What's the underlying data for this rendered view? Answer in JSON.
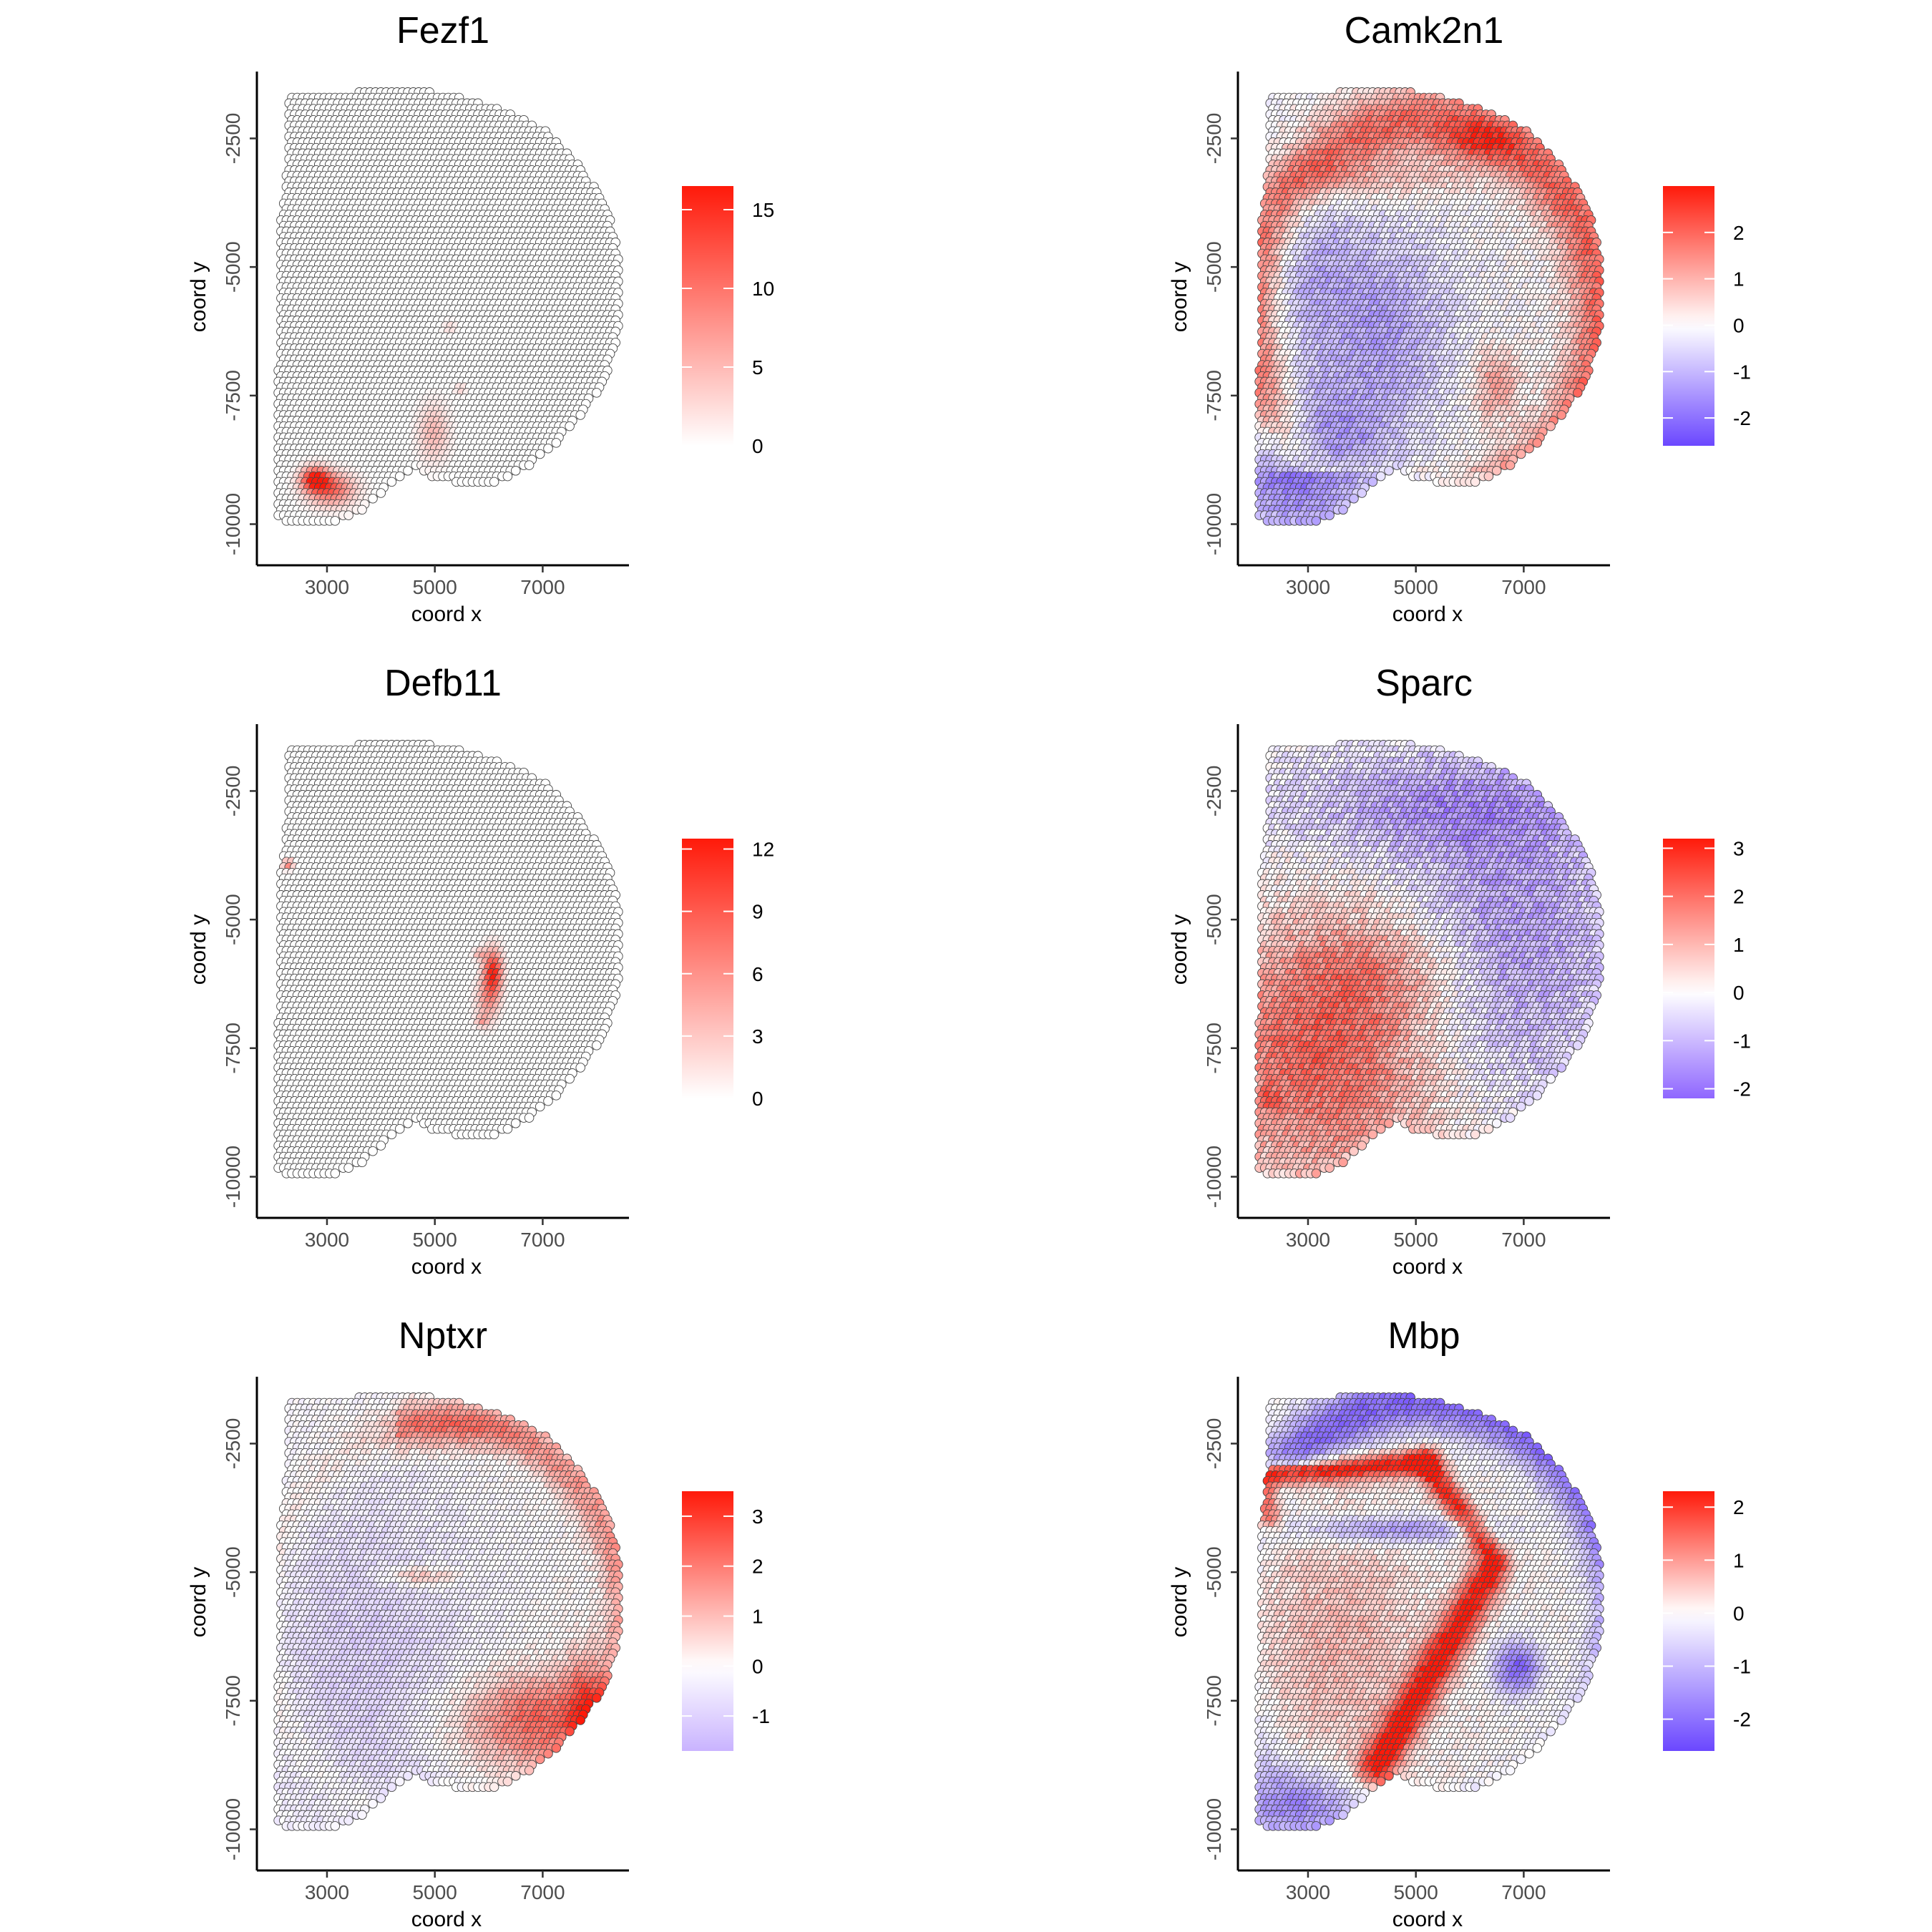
{
  "chart_data": [
    {
      "type": "scatter",
      "title": "Fezf1",
      "xlabel": "coord x",
      "ylabel": "coord y",
      "x_ticks": [
        3000,
        5000,
        7000
      ],
      "y_ticks": [
        -2500,
        -5000,
        -7500,
        -10000
      ],
      "xlim": [
        1700,
        8600
      ],
      "ylim": [
        -10800,
        -1200
      ],
      "color_scale": {
        "low": "#ffffff",
        "mid": "#ffffff",
        "high": "#ff1a0a",
        "min": 0,
        "max": 16.5,
        "ticks": [
          0,
          5,
          10,
          15
        ]
      },
      "hotspots": [
        {
          "x": 3000,
          "y": -9300,
          "value": 11
        },
        {
          "x": 2800,
          "y": -9150,
          "value": 16
        },
        {
          "x": 5000,
          "y": -8200,
          "value": 5
        }
      ]
    },
    {
      "type": "scatter",
      "title": "Camk2n1",
      "xlabel": "coord x",
      "ylabel": "coord y",
      "x_ticks": [
        3000,
        5000,
        7000
      ],
      "y_ticks": [
        -2500,
        -5000,
        -7500,
        -10000
      ],
      "xlim": [
        1700,
        8600
      ],
      "ylim": [
        -10800,
        -1200
      ],
      "color_scale": {
        "low": "#6b47ff",
        "mid": "#ffffff",
        "high": "#ff1a0a",
        "min": -2.6,
        "max": 3.0,
        "ticks": [
          -2,
          -1,
          0,
          1,
          2
        ]
      },
      "hotspots": [
        {
          "x": 6300,
          "y": -2600,
          "value": 2.8
        }
      ]
    },
    {
      "type": "scatter",
      "title": "Defb11",
      "xlabel": "coord x",
      "ylabel": "coord y",
      "x_ticks": [
        3000,
        5000,
        7000
      ],
      "y_ticks": [
        -2500,
        -5000,
        -7500,
        -10000
      ],
      "xlim": [
        1700,
        8600
      ],
      "ylim": [
        -10800,
        -1200
      ],
      "color_scale": {
        "low": "#ffffff",
        "mid": "#ffffff",
        "high": "#ff1a0a",
        "min": 0,
        "max": 12.5,
        "ticks": [
          0,
          3,
          6,
          9,
          12
        ]
      },
      "hotspots": [
        {
          "x": 6100,
          "y": -6000,
          "value": 12
        },
        {
          "x": 2300,
          "y": -3900,
          "value": 8
        }
      ]
    },
    {
      "type": "scatter",
      "title": "Sparc",
      "xlabel": "coord x",
      "ylabel": "coord y",
      "x_ticks": [
        3000,
        5000,
        7000
      ],
      "y_ticks": [
        -2500,
        -5000,
        -7500,
        -10000
      ],
      "xlim": [
        1700,
        8600
      ],
      "ylim": [
        -10800,
        -1200
      ],
      "color_scale": {
        "low": "#8f66ff",
        "mid": "#ffffff",
        "high": "#ff1a0a",
        "min": -2.2,
        "max": 3.2,
        "ticks": [
          -2,
          -1,
          0,
          1,
          2,
          3
        ]
      },
      "hotspots": [
        {
          "x": 2300,
          "y": -8500,
          "value": 3.0
        }
      ]
    },
    {
      "type": "scatter",
      "title": "Nptxr",
      "xlabel": "coord x",
      "ylabel": "coord y",
      "x_ticks": [
        3000,
        5000,
        7000
      ],
      "y_ticks": [
        -2500,
        -5000,
        -7500,
        -10000
      ],
      "xlim": [
        1700,
        8600
      ],
      "ylim": [
        -10800,
        -1200
      ],
      "color_scale": {
        "low": "#c9b3ff",
        "mid": "#ffffff",
        "high": "#ff1a0a",
        "min": -1.7,
        "max": 3.5,
        "ticks": [
          -1,
          0,
          1,
          2,
          3
        ]
      },
      "hotspots": [
        {
          "x": 7700,
          "y": -7800,
          "value": 3.4
        }
      ]
    },
    {
      "type": "scatter",
      "title": "Mbp",
      "xlabel": "coord x",
      "ylabel": "coord y",
      "x_ticks": [
        3000,
        5000,
        7000
      ],
      "y_ticks": [
        -2500,
        -5000,
        -7500,
        -10000
      ],
      "xlim": [
        1700,
        8600
      ],
      "ylim": [
        -10800,
        -1200
      ],
      "color_scale": {
        "low": "#6b47ff",
        "mid": "#ffffff",
        "high": "#ff1a0a",
        "min": -2.6,
        "max": 2.3,
        "ticks": [
          -2,
          -1,
          0,
          1,
          2
        ]
      },
      "hotspots": [
        {
          "x": 4300,
          "y": -3000,
          "value": 2.2
        }
      ]
    }
  ]
}
